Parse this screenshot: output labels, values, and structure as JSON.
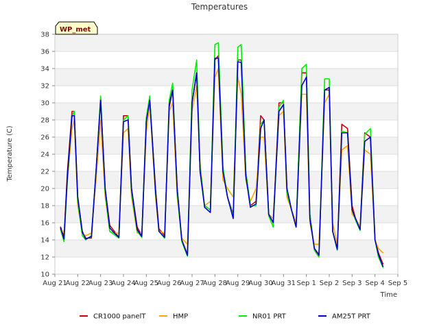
{
  "chart_data": {
    "type": "line",
    "title": "Temperatures",
    "xlabel": "Time",
    "ylabel": "Temperature (C)",
    "site_badge": "WP_met",
    "ylim": [
      10,
      38
    ],
    "yticks": [
      10,
      12,
      14,
      16,
      18,
      20,
      22,
      24,
      26,
      28,
      30,
      32,
      34,
      36,
      38
    ],
    "xlim": [
      0,
      15
    ],
    "xticks": [
      {
        "value": 0,
        "label": "Aug 21"
      },
      {
        "value": 1,
        "label": "Aug 22"
      },
      {
        "value": 2,
        "label": "Aug 23"
      },
      {
        "value": 3,
        "label": "Aug 24"
      },
      {
        "value": 4,
        "label": "Aug 25"
      },
      {
        "value": 5,
        "label": "Aug 26"
      },
      {
        "value": 6,
        "label": "Aug 27"
      },
      {
        "value": 7,
        "label": "Aug 28"
      },
      {
        "value": 8,
        "label": "Aug 29"
      },
      {
        "value": 9,
        "label": "Aug 30"
      },
      {
        "value": 10,
        "label": "Aug 31"
      },
      {
        "value": 11,
        "label": "Sep 1"
      },
      {
        "value": 12,
        "label": "Sep 2"
      },
      {
        "value": 13,
        "label": "Sep 3"
      },
      {
        "value": 14,
        "label": "Sep 4"
      },
      {
        "value": 15,
        "label": "Sep 5"
      }
    ],
    "x": [
      0.25,
      0.4,
      0.55,
      0.75,
      0.85,
      1.0,
      1.2,
      1.35,
      1.6,
      1.8,
      2.0,
      2.2,
      2.4,
      2.6,
      2.8,
      3.0,
      3.2,
      3.35,
      3.6,
      3.8,
      4.0,
      4.15,
      4.4,
      4.55,
      4.8,
      5.0,
      5.15,
      5.35,
      5.55,
      5.8,
      6.0,
      6.2,
      6.35,
      6.55,
      6.8,
      7.0,
      7.15,
      7.35,
      7.55,
      7.8,
      8.0,
      8.15,
      8.35,
      8.55,
      8.8,
      9.0,
      9.15,
      9.35,
      9.55,
      9.8,
      10.0,
      10.15,
      10.35,
      10.55,
      10.8,
      11.0,
      11.15,
      11.35,
      11.55,
      11.8,
      12.0,
      12.15,
      12.35,
      12.55,
      12.8,
      13.0,
      13.15,
      13.35,
      13.55,
      13.8,
      14.0,
      14.15,
      14.35
    ],
    "series": [
      {
        "name": "CR1000 panelT",
        "color": "#cc0000",
        "values": [
          15.5,
          14.5,
          22,
          29,
          29,
          19,
          15,
          14.2,
          14.2,
          22,
          30.5,
          20,
          15.7,
          15,
          14.3,
          28.5,
          28.5,
          20,
          15.5,
          14.5,
          28,
          30.5,
          20,
          15.3,
          14.5,
          29.5,
          31.5,
          20,
          14,
          12.3,
          30,
          33.5,
          22,
          18,
          17.5,
          35,
          35.5,
          22,
          19,
          17,
          35,
          35,
          22,
          18,
          18.5,
          28.5,
          28,
          17,
          16,
          30,
          30,
          20,
          17.5,
          15.5,
          33.5,
          33.5,
          17,
          13,
          12.3,
          31.5,
          31.5,
          15,
          13,
          27.5,
          27,
          18,
          16.5,
          15.5,
          26.5,
          26,
          14,
          12.5,
          11.2
        ]
      },
      {
        "name": "HMP",
        "color": "#ffa500",
        "values": [
          15.3,
          14.8,
          21,
          27,
          28,
          18,
          14.8,
          14.5,
          14.8,
          21,
          28,
          19,
          15,
          14.8,
          14.8,
          26.5,
          27,
          19,
          14.8,
          14.8,
          26.5,
          30,
          19,
          15,
          14.8,
          29,
          30,
          19,
          14.2,
          13.5,
          29,
          32,
          23,
          18,
          18.5,
          33,
          34,
          21,
          20,
          19,
          33,
          31,
          21,
          18.5,
          20,
          26,
          26,
          17,
          16.5,
          28.5,
          29,
          19,
          17.5,
          16,
          31,
          31,
          16,
          13.5,
          13.5,
          30,
          31,
          16,
          13.5,
          24.5,
          25,
          17,
          16.5,
          15.5,
          24.5,
          24,
          14,
          13,
          12.5
        ]
      },
      {
        "name": "NR01 PRT",
        "color": "#00ee00",
        "values": [
          15.2,
          13.8,
          21,
          28.5,
          29,
          18.5,
          14.5,
          14,
          14.5,
          22,
          30.8,
          19.5,
          15,
          14.6,
          14.2,
          28,
          28.5,
          19.5,
          15,
          14.3,
          28.3,
          30.8,
          19.5,
          15,
          14.2,
          30.3,
          32.3,
          19.5,
          13.8,
          12.1,
          31.5,
          35,
          22.5,
          18,
          17.5,
          36.8,
          37,
          22.5,
          19,
          16.8,
          36.5,
          36.8,
          22,
          18,
          18,
          27.5,
          28,
          16.8,
          15.5,
          29.5,
          30.3,
          19.5,
          17.5,
          15.5,
          34,
          34.5,
          17,
          12.8,
          12,
          32.8,
          32.8,
          15,
          12.8,
          26.7,
          26.5,
          17.5,
          16.3,
          15.1,
          26.3,
          27,
          14,
          12,
          10.8
        ]
      },
      {
        "name": "AM25T PRT",
        "color": "#0000cc",
        "values": [
          15.4,
          14.1,
          21.5,
          28.5,
          28.5,
          19,
          14.9,
          14.1,
          14.4,
          22,
          30.3,
          20,
          15.4,
          14.8,
          14.3,
          27.8,
          28,
          20,
          15.2,
          14.4,
          27.8,
          30.3,
          19.8,
          15,
          14.3,
          29.8,
          31.5,
          20,
          14,
          12.2,
          30,
          33.5,
          22,
          17.8,
          17.2,
          35.2,
          35.2,
          22,
          19,
          16.5,
          34.8,
          34.7,
          21.5,
          17.8,
          18.2,
          27,
          28,
          17,
          16,
          29,
          29.8,
          20,
          17.5,
          15.5,
          32,
          33,
          16.5,
          13,
          12.2,
          31.5,
          31.8,
          15,
          12.9,
          26.5,
          26.5,
          17.5,
          16.5,
          15.2,
          25.5,
          26,
          14,
          12.3,
          10.9
        ]
      }
    ],
    "legend": [
      "CR1000 panelT",
      "HMP",
      "NR01 PRT",
      "AM25T PRT"
    ],
    "legend_placement": "bottom-center",
    "grid": true
  }
}
